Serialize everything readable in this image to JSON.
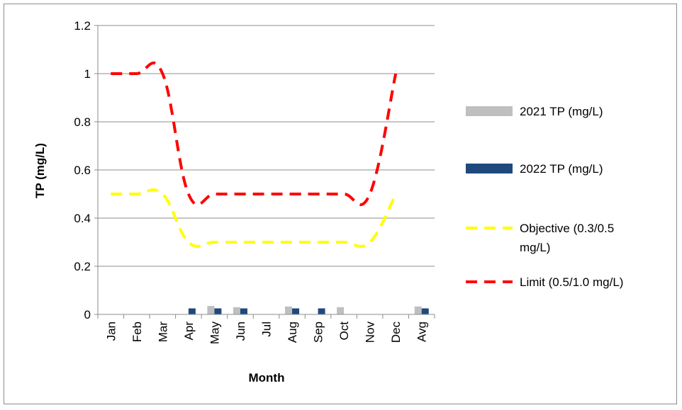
{
  "chart_data": {
    "type": "bar",
    "xlabel": "Month",
    "ylabel": "TP (mg/L)",
    "ylim": [
      0,
      1.2
    ],
    "yticks": [
      "0",
      "0.2",
      "0.4",
      "0.6",
      "0.8",
      "1",
      "1.2"
    ],
    "categories": [
      "Jan",
      "Feb",
      "Mar",
      "Apr",
      "May",
      "Jun",
      "Jul",
      "Aug",
      "Sep",
      "Oct",
      "Nov",
      "Dec",
      "Avg"
    ],
    "grid": true,
    "legend_position": "right",
    "series": [
      {
        "name": "2021 TP (mg/L)",
        "kind": "bar",
        "color": "#bfbfbf",
        "values": [
          null,
          null,
          null,
          null,
          0.035,
          0.03,
          null,
          0.033,
          null,
          0.03,
          null,
          null,
          0.033
        ]
      },
      {
        "name": "2022 TP (mg/L)",
        "kind": "bar",
        "color": "#1f497d",
        "values": [
          null,
          null,
          null,
          0.025,
          0.025,
          0.025,
          null,
          0.025,
          0.025,
          null,
          null,
          null,
          0.025
        ]
      },
      {
        "name": "Objective (0.3/0.5 mg/L)",
        "legend_lines": [
          "Objective (0.3/0.5",
          "mg/L)"
        ],
        "kind": "dashed-line",
        "color": "#ffff00",
        "values": [
          0.5,
          0.5,
          0.5,
          0.3,
          0.3,
          0.3,
          0.3,
          0.3,
          0.3,
          0.3,
          0.3,
          0.5,
          null
        ]
      },
      {
        "name": "Limit (0.5/1.0 mg/L)",
        "kind": "dashed-line",
        "color": "#ff0000",
        "values": [
          1.0,
          1.0,
          1.0,
          0.5,
          0.5,
          0.5,
          0.5,
          0.5,
          0.5,
          0.5,
          0.5,
          1.0,
          null
        ]
      }
    ]
  }
}
